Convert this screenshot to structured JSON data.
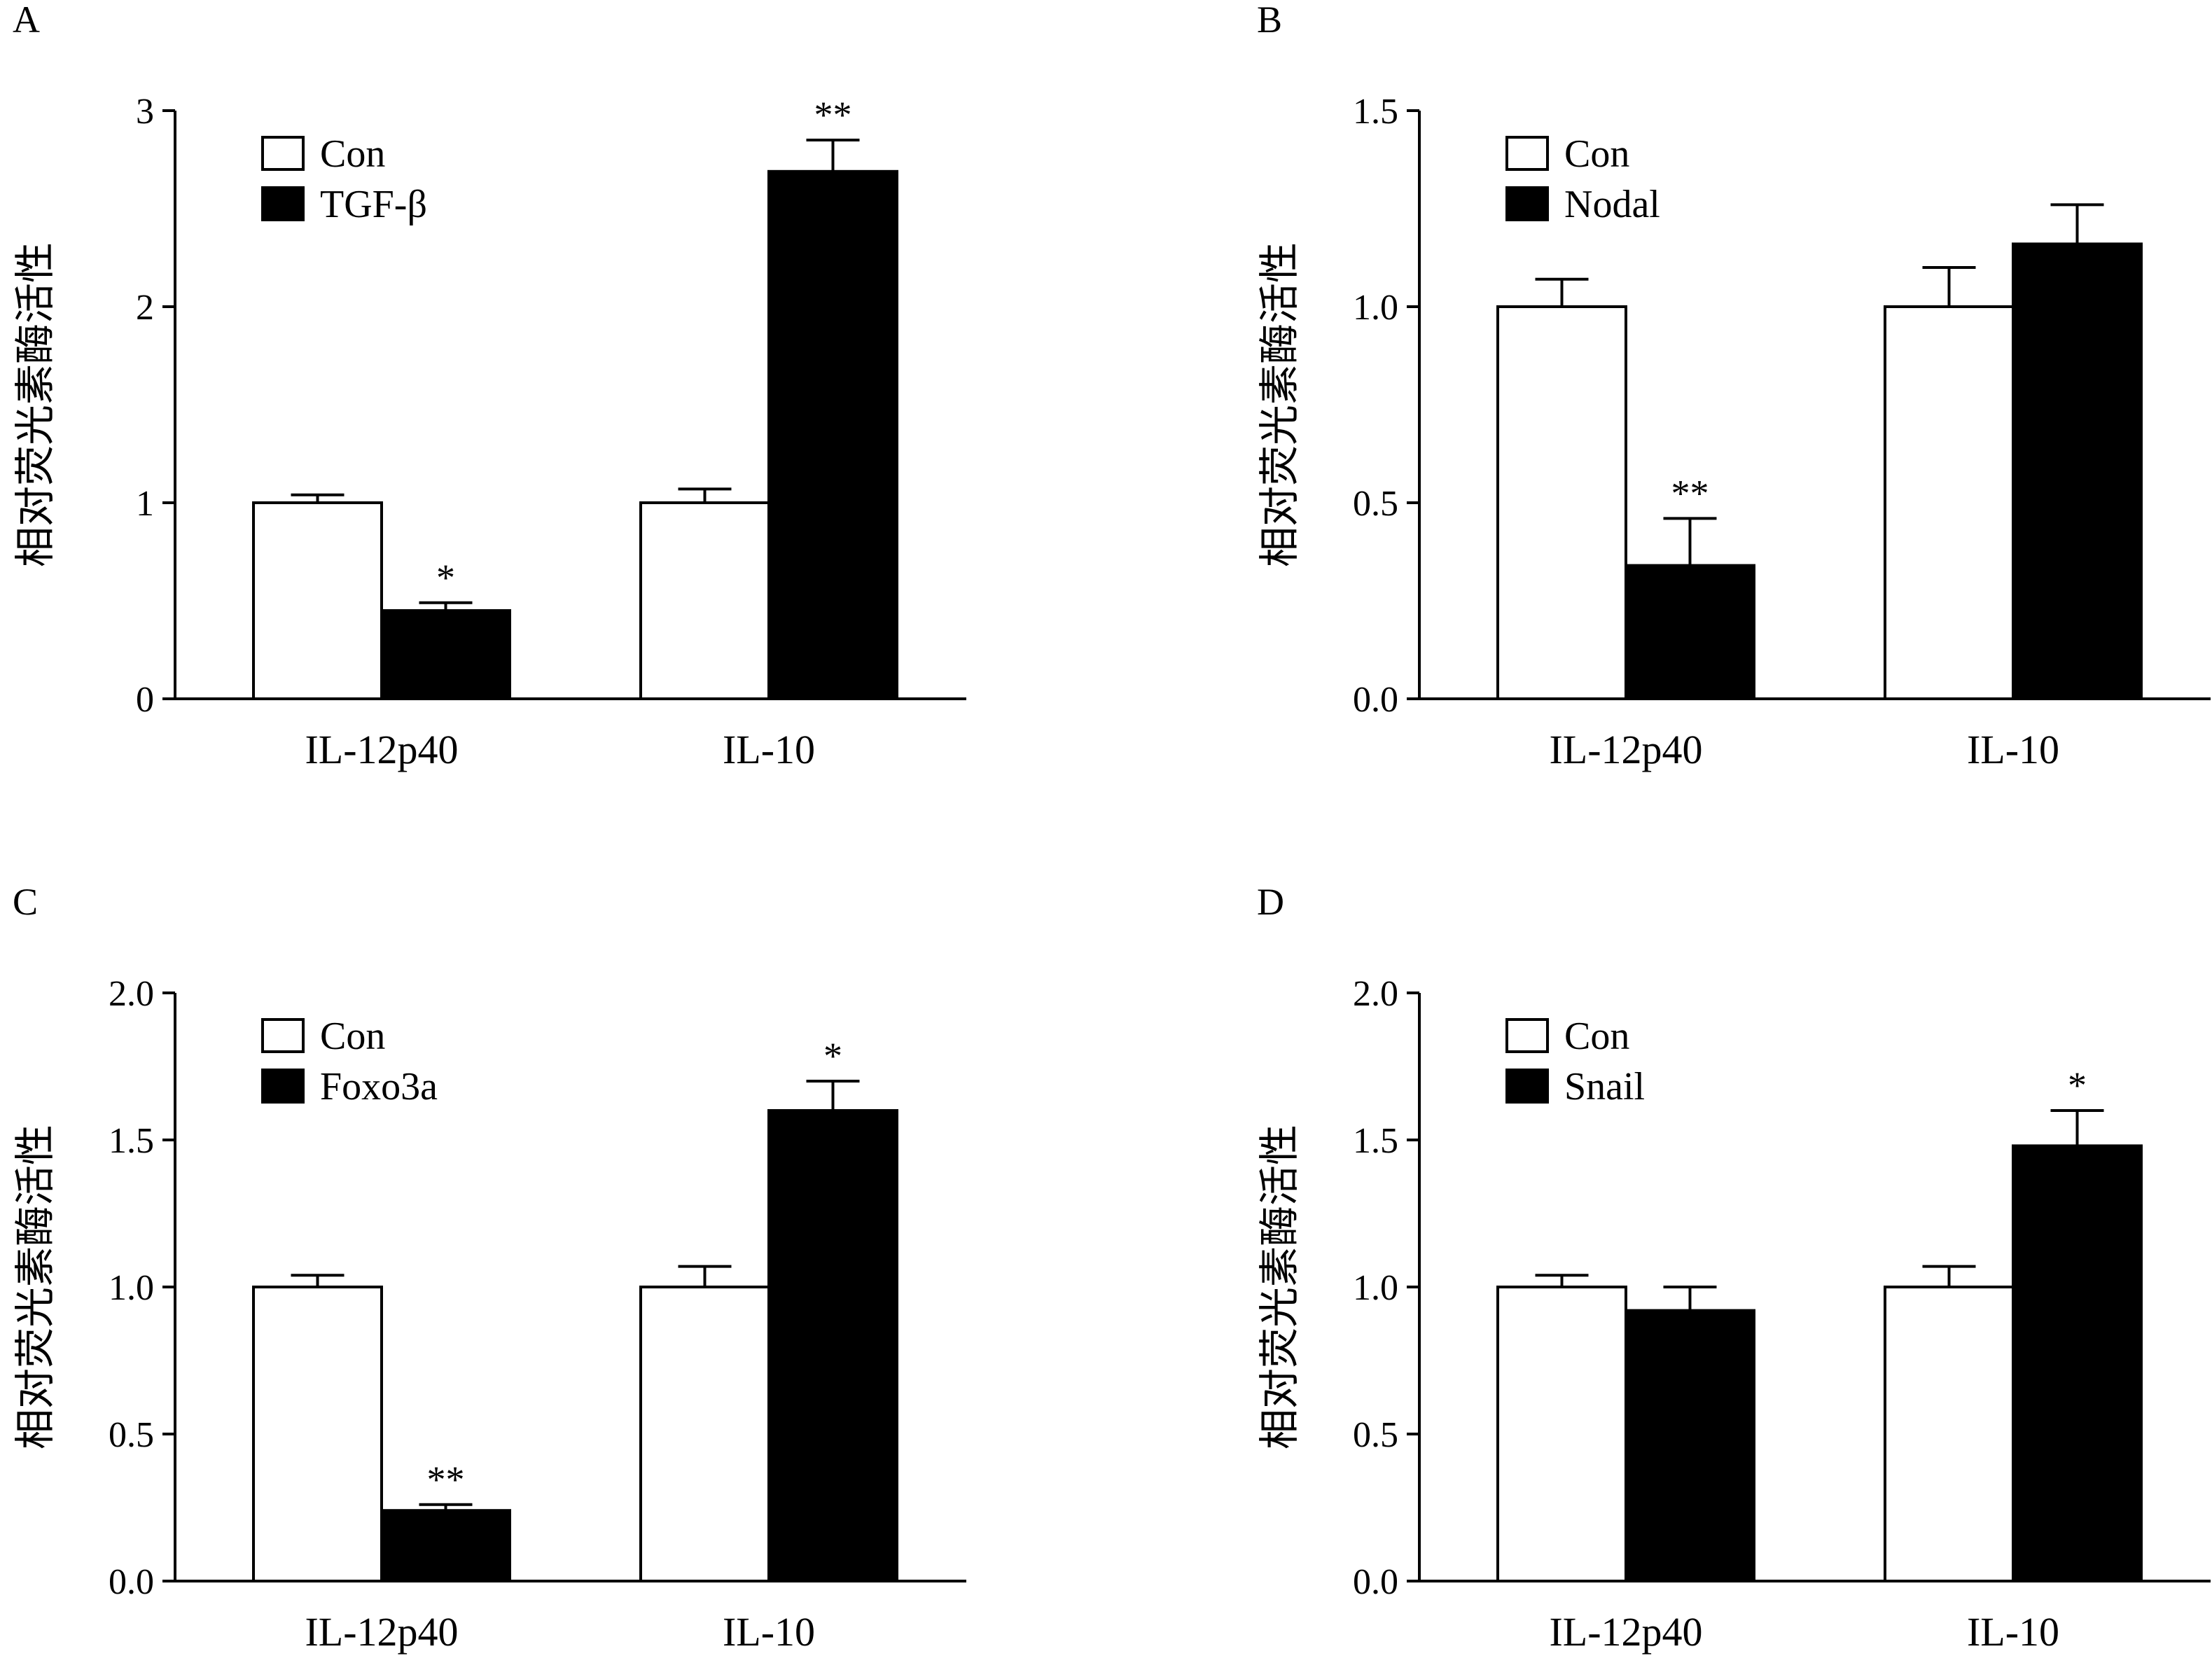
{
  "colors": {
    "con": "#ffffff",
    "treatment": "#000000",
    "stroke": "#000000"
  },
  "chart_data": [
    {
      "panel": "A",
      "type": "bar",
      "categories": [
        "IL-12p40",
        "IL-10"
      ],
      "ylabel": "相对荧光素酶活性",
      "ylim": [
        0,
        3
      ],
      "yticks": [
        "0",
        "1",
        "2",
        "3"
      ],
      "legend": [
        "Con",
        "TGF-β"
      ],
      "series": [
        {
          "name": "Con",
          "values": [
            1.0,
            1.0
          ],
          "errors": [
            0.04,
            0.07
          ],
          "sig": [
            "",
            ""
          ]
        },
        {
          "name": "TGF-β",
          "values": [
            0.45,
            2.69
          ],
          "errors": [
            0.04,
            0.16
          ],
          "sig": [
            "*",
            "**"
          ]
        }
      ]
    },
    {
      "panel": "B",
      "type": "bar",
      "categories": [
        "IL-12p40",
        "IL-10"
      ],
      "ylabel": "相对荧光素酶活性",
      "ylim": [
        0,
        1.5
      ],
      "yticks": [
        "0.0",
        "0.5",
        "1.0",
        "1.5"
      ],
      "legend": [
        "Con",
        "Nodal"
      ],
      "series": [
        {
          "name": "Con",
          "values": [
            1.0,
            1.0
          ],
          "errors": [
            0.07,
            0.1
          ],
          "sig": [
            "",
            ""
          ]
        },
        {
          "name": "Nodal",
          "values": [
            0.34,
            1.16
          ],
          "errors": [
            0.12,
            0.1
          ],
          "sig": [
            "**",
            ""
          ]
        }
      ]
    },
    {
      "panel": "C",
      "type": "bar",
      "categories": [
        "IL-12p40",
        "IL-10"
      ],
      "ylabel": "相对荧光素酶活性",
      "ylim": [
        0,
        2
      ],
      "yticks": [
        "0.0",
        "0.5",
        "1.0",
        "1.5",
        "2.0"
      ],
      "legend": [
        "Con",
        "Foxo3a"
      ],
      "series": [
        {
          "name": "Con",
          "values": [
            1.0,
            1.0
          ],
          "errors": [
            0.04,
            0.07
          ],
          "sig": [
            "",
            ""
          ]
        },
        {
          "name": "Foxo3a",
          "values": [
            0.24,
            1.6
          ],
          "errors": [
            0.02,
            0.1
          ],
          "sig": [
            "**",
            "*"
          ]
        }
      ]
    },
    {
      "panel": "D",
      "type": "bar",
      "categories": [
        "IL-12p40",
        "IL-10"
      ],
      "ylabel": "相对荧光素酶活性",
      "ylim": [
        0,
        2
      ],
      "yticks": [
        "0.0",
        "0.5",
        "1.0",
        "1.5",
        "2.0"
      ],
      "legend": [
        "Con",
        "Snail"
      ],
      "series": [
        {
          "name": "Con",
          "values": [
            1.0,
            1.0
          ],
          "errors": [
            0.04,
            0.07
          ],
          "sig": [
            "",
            ""
          ]
        },
        {
          "name": "Snail",
          "values": [
            0.92,
            1.48
          ],
          "errors": [
            0.08,
            0.12
          ],
          "sig": [
            "",
            "*"
          ]
        }
      ]
    }
  ]
}
